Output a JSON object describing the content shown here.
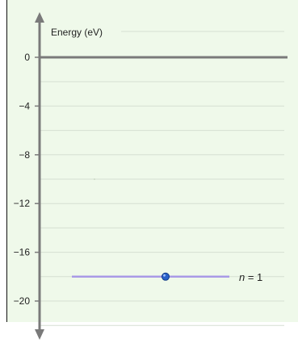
{
  "chart_data": {
    "type": "line",
    "ylabel": "Energy (eV)",
    "xlabel": "",
    "title": "",
    "ylim": [
      -22.5,
      2.5
    ],
    "y_ticks": [
      0,
      -4,
      -8,
      -12,
      -16,
      -20
    ],
    "y_tick_labels": [
      "0",
      "−4",
      "−8",
      "−12",
      "−16",
      "−20"
    ],
    "grid": true,
    "series": [
      {
        "name": "n = 1",
        "name_var": "n",
        "name_rest": " = 1",
        "energy": -18.0,
        "has_electron": true
      }
    ],
    "colors": {
      "background": "#eff9ea",
      "grid": "#d6dfd2",
      "axis": "#7a7a7a",
      "level": "#a99ae6",
      "electron": "#2a62c9"
    }
  }
}
